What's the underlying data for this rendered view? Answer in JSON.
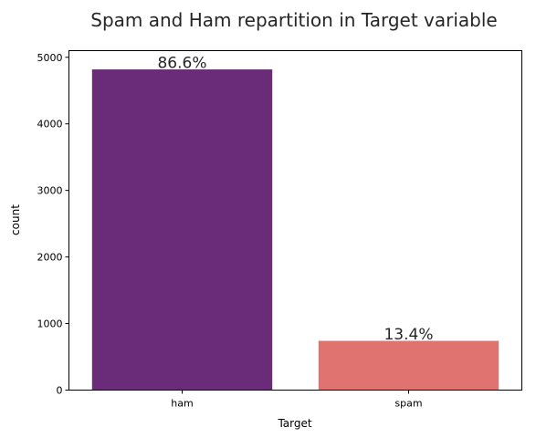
{
  "chart_data": {
    "type": "bar",
    "title": "Spam and Ham repartition in Target variable",
    "xlabel": "Target",
    "ylabel": "count",
    "categories": [
      "ham",
      "spam"
    ],
    "values": [
      4825,
      747
    ],
    "data_labels": [
      "86.6%",
      "13.4%"
    ],
    "colors": [
      "#6a2c78",
      "#e07270"
    ],
    "ylim": [
      0,
      5100
    ],
    "yticks": [
      0,
      1000,
      2000,
      3000,
      4000,
      5000
    ],
    "grid": false,
    "legend": "none"
  }
}
